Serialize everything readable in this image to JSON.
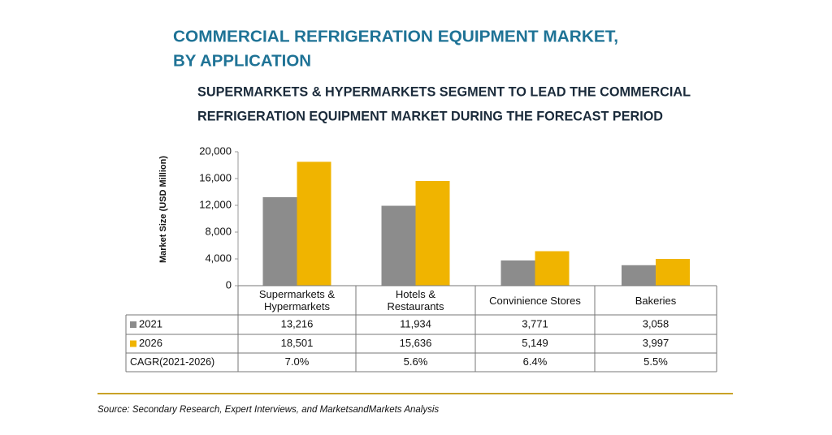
{
  "chart_data": {
    "type": "bar",
    "title": [
      "COMMERCIAL REFRIGERATION EQUIPMENT MARKET,",
      "BY APPLICATION"
    ],
    "subtitle": [
      "SUPERMARKETS & HYPERMARKETS SEGMENT TO LEAD THE COMMERCIAL",
      "REFRIGERATION EQUIPMENT MARKET DURING THE FORECAST PERIOD"
    ],
    "y_label": "Market Size (USD Million)",
    "categories": [
      "Supermarkets & Hypermarkets",
      "Hotels & Restaurants",
      "Convinience Stores",
      "Bakeries"
    ],
    "series": [
      {
        "name": "2021",
        "color": "#8c8c8c",
        "values": [
          13216,
          11934,
          3771,
          3058
        ],
        "value_labels": [
          "13,216",
          "11,934",
          "3,771",
          "3,058"
        ]
      },
      {
        "name": "2026",
        "color": "#f0b400",
        "values": [
          18501,
          15636,
          5149,
          3997
        ],
        "value_labels": [
          "18,501",
          "15,636",
          "5,149",
          "3,997"
        ]
      }
    ],
    "cagr": {
      "name": "CAGR(2021-2026)",
      "values": [
        7.0,
        5.6,
        6.4,
        5.5
      ],
      "value_labels": [
        "7.0%",
        "5.6%",
        "6.4%",
        "5.5%"
      ]
    },
    "ylim": [
      0,
      20000
    ],
    "yticks": [
      0,
      {
        "value": 4000,
        "label": "4,000"
      },
      {
        "value": 8000,
        "label": "8,000"
      },
      {
        "value": 12000,
        "label": "12,000"
      },
      {
        "value": 16000,
        "label": "16,000"
      },
      {
        "value": 20000,
        "label": "20,000"
      }
    ],
    "source": "Source: Secondary Research, Expert Interviews, and MarketsandMarkets Analysis"
  }
}
